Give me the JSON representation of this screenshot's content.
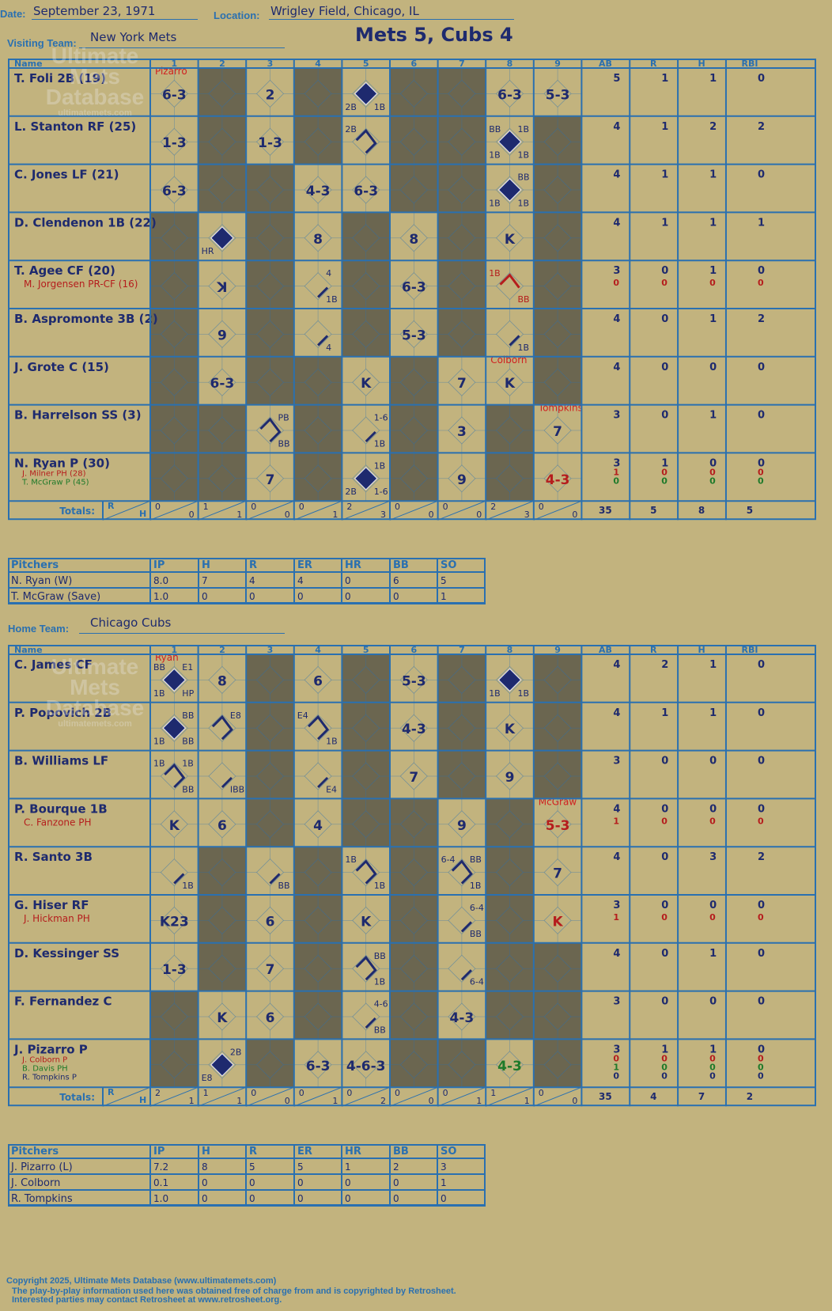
{
  "header": {
    "date_label": "Date:",
    "date": "September 23, 1971",
    "location_label": "Location:",
    "location": "Wrigley Field, Chicago, IL",
    "visiting_label": "Visiting Team:",
    "visiting_team": "New York Mets",
    "home_label": "Home Team:",
    "home_team": "Chicago Cubs",
    "score_title": "Mets 5, Cubs 4"
  },
  "columns": {
    "name": "Name",
    "innings": [
      "1",
      "2",
      "3",
      "4",
      "5",
      "6",
      "7",
      "8",
      "9"
    ],
    "stats": [
      "AB",
      "R",
      "H",
      "RBI"
    ],
    "totals": "Totals:",
    "r": "R",
    "h": "H"
  },
  "watermark": {
    "line1": "Ultimate",
    "line2": "Mets",
    "line3": "Database",
    "line4": "ultimatemets.com"
  },
  "visitor": {
    "batters": [
      {
        "name": "T. Foli 2B (19)",
        "subs": [],
        "stats": [
          [
            "5",
            "1",
            "1",
            "0"
          ]
        ]
      },
      {
        "name": "L. Stanton RF (25)",
        "subs": [],
        "stats": [
          [
            "4",
            "1",
            "2",
            "2"
          ]
        ]
      },
      {
        "name": "C. Jones LF (21)",
        "subs": [],
        "stats": [
          [
            "4",
            "1",
            "1",
            "0"
          ]
        ]
      },
      {
        "name": "D. Clendenon 1B (22)",
        "subs": [],
        "stats": [
          [
            "4",
            "1",
            "1",
            "1"
          ]
        ]
      },
      {
        "name": "T. Agee CF (20)",
        "subs": [
          {
            "name": "M. Jorgensen PR-CF (16)",
            "color": "#b51d1d"
          }
        ],
        "stats": [
          [
            "3",
            "0",
            "1",
            "0"
          ],
          [
            "0",
            "0",
            "0",
            "0"
          ]
        ]
      },
      {
        "name": "B. Aspromonte 3B (2)",
        "subs": [],
        "stats": [
          [
            "4",
            "0",
            "1",
            "2"
          ]
        ]
      },
      {
        "name": "J. Grote C (15)",
        "subs": [],
        "stats": [
          [
            "4",
            "0",
            "0",
            "0"
          ]
        ]
      },
      {
        "name": "B. Harrelson SS (3)",
        "subs": [],
        "stats": [
          [
            "3",
            "0",
            "1",
            "0"
          ]
        ]
      },
      {
        "name": "N. Ryan P (30)",
        "subs": [
          {
            "name": "J. Milner PH (28)",
            "color": "#b51d1d"
          },
          {
            "name": "T. McGraw P (45)",
            "color": "#1f7a2a"
          }
        ],
        "stats": [
          [
            "3",
            "1",
            "0",
            "0"
          ],
          [
            "1",
            "0",
            "0",
            "0"
          ],
          [
            "0",
            "0",
            "0",
            "0"
          ]
        ]
      }
    ],
    "cells": [
      [
        {
          "t": "6-3"
        },
        {
          "shade": true
        },
        {
          "t": "2"
        },
        {
          "shade": true
        },
        {
          "run": true,
          "n": "2B",
          "m": "1B"
        },
        {
          "shade": true
        },
        {
          "shade": true
        },
        {
          "t": "6-3"
        },
        {
          "t": "5-3"
        }
      ],
      [
        {
          "t": "1-3"
        },
        {
          "shade": true
        },
        {
          "t": "1-3"
        },
        {
          "shade": true
        },
        {
          "path": 2,
          "b": "2B"
        },
        {
          "shade": true
        },
        {
          "shade": true
        },
        {
          "run": true,
          "a": "1B",
          "b": "BB",
          "n": "1B",
          "m": "1B"
        },
        {
          "shade": true
        }
      ],
      [
        {
          "t": "6-3"
        },
        {
          "shade": true
        },
        {
          "shade": true
        },
        {
          "t": "4-3"
        },
        {
          "t": "6-3"
        },
        {
          "shade": true
        },
        {
          "shade": true
        },
        {
          "run": true,
          "a": "BB",
          "n": "1B",
          "m": "1B"
        },
        {
          "shade": true
        }
      ],
      [
        {
          "shade": true
        },
        {
          "run": true,
          "n": "HR"
        },
        {
          "shade": true
        },
        {
          "t": "8"
        },
        {
          "shade": true
        },
        {
          "t": "8"
        },
        {
          "shade": true
        },
        {
          "t": "K"
        },
        {
          "shade": true
        }
      ],
      [
        {
          "shade": true
        },
        {
          "t": "K",
          "flip": true
        },
        {
          "shade": true
        },
        {
          "path": 1,
          "m": "1B",
          "a": "4"
        },
        {
          "shade": true
        },
        {
          "t": "6-3"
        },
        {
          "shade": true
        },
        {
          "path": 3,
          "red": true,
          "b": "1B",
          "m": "BB"
        },
        {
          "shade": true
        }
      ],
      [
        {
          "shade": true
        },
        {
          "t": "9"
        },
        {
          "shade": true
        },
        {
          "path": 1,
          "m": "4"
        },
        {
          "shade": true
        },
        {
          "t": "5-3"
        },
        {
          "shade": true
        },
        {
          "path": 1,
          "m": "1B"
        },
        {
          "shade": true
        }
      ],
      [
        {
          "shade": true
        },
        {
          "t": "6-3"
        },
        {
          "shade": true
        },
        {
          "shade": true
        },
        {
          "t": "K"
        },
        {
          "shade": true
        },
        {
          "t": "7"
        },
        {
          "t": "K",
          "note": "Colborn"
        },
        {
          "shade": true
        }
      ],
      [
        {
          "shade": true
        },
        {
          "shade": true
        },
        {
          "path": 2,
          "a": "PB",
          "m": "BB"
        },
        {
          "shade": true
        },
        {
          "path": 1,
          "a": "1-6",
          "m": "1B"
        },
        {
          "shade": true
        },
        {
          "t": "3"
        },
        {
          "shade": true
        },
        {
          "t": "7",
          "note": "Tompkins"
        }
      ],
      [
        {
          "shade": true
        },
        {
          "shade": true
        },
        {
          "t": "7"
        },
        {
          "shade": true
        },
        {
          "run": true,
          "a": "1B",
          "n": "2B",
          "m": "1-6"
        },
        {
          "shade": true
        },
        {
          "t": "9"
        },
        {
          "shade": true
        },
        {
          "t": "4-3",
          "red": true
        }
      ]
    ],
    "first_note": "Pizarro",
    "totals": [
      [
        "0",
        "0"
      ],
      [
        "1",
        "1"
      ],
      [
        "0",
        "0"
      ],
      [
        "0",
        "1"
      ],
      [
        "2",
        "3"
      ],
      [
        "0",
        "0"
      ],
      [
        "0",
        "0"
      ],
      [
        "2",
        "3"
      ],
      [
        "0",
        "0"
      ]
    ],
    "totals_stats": [
      "35",
      "5",
      "8",
      "5"
    ],
    "pitch_headers": [
      "Pitchers",
      "IP",
      "H",
      "R",
      "ER",
      "HR",
      "BB",
      "SO"
    ],
    "pitchers": [
      [
        "N. Ryan (W)",
        "8.0",
        "7",
        "4",
        "4",
        "0",
        "6",
        "5"
      ],
      [
        "T. McGraw (Save)",
        "1.0",
        "0",
        "0",
        "0",
        "0",
        "0",
        "1"
      ]
    ]
  },
  "home": {
    "batters": [
      {
        "name": "C. James CF",
        "subs": [],
        "stats": [
          [
            "4",
            "2",
            "1",
            "0"
          ]
        ]
      },
      {
        "name": "P. Popovich 2B",
        "subs": [],
        "stats": [
          [
            "4",
            "1",
            "1",
            "0"
          ]
        ]
      },
      {
        "name": "B. Williams LF",
        "subs": [],
        "stats": [
          [
            "3",
            "0",
            "0",
            "0"
          ]
        ]
      },
      {
        "name": "P. Bourque 1B",
        "subs": [
          {
            "name": "C. Fanzone PH",
            "color": "#b51d1d"
          }
        ],
        "stats": [
          [
            "4",
            "0",
            "0",
            "0"
          ],
          [
            "1",
            "0",
            "0",
            "0"
          ]
        ]
      },
      {
        "name": "R. Santo 3B",
        "subs": [],
        "stats": [
          [
            "4",
            "0",
            "3",
            "2"
          ]
        ]
      },
      {
        "name": "G. Hiser RF",
        "subs": [
          {
            "name": "J. Hickman PH",
            "color": "#b51d1d"
          }
        ],
        "stats": [
          [
            "3",
            "0",
            "0",
            "0"
          ],
          [
            "1",
            "0",
            "0",
            "0"
          ]
        ]
      },
      {
        "name": "D. Kessinger SS",
        "subs": [],
        "stats": [
          [
            "4",
            "0",
            "1",
            "0"
          ]
        ]
      },
      {
        "name": "F. Fernandez C",
        "subs": [],
        "stats": [
          [
            "3",
            "0",
            "0",
            "0"
          ]
        ]
      },
      {
        "name": "J. Pizarro P",
        "subs": [
          {
            "name": "J. Colborn P",
            "color": "#b51d1d"
          },
          {
            "name": "B. Davis PH",
            "color": "#1f7a2a"
          },
          {
            "name": "R. Tompkins P",
            "color": "#1e2a6e"
          }
        ],
        "stats": [
          [
            "3",
            "1",
            "1",
            "0"
          ],
          [
            "0",
            "0",
            "0",
            "0"
          ],
          [
            "1",
            "0",
            "0",
            "0"
          ],
          [
            "0",
            "0",
            "0",
            "0"
          ]
        ]
      }
    ],
    "cells": [
      [
        {
          "run": true,
          "a": "E1",
          "b": "BB",
          "n": "1B",
          "m": "HP"
        },
        {
          "t": "8"
        },
        {
          "shade": true
        },
        {
          "t": "6"
        },
        {
          "shade": true
        },
        {
          "t": "5-3"
        },
        {
          "shade": true
        },
        {
          "run": true,
          "n": "1B",
          "m": "1B"
        },
        {
          "shade": true
        }
      ],
      [
        {
          "run": true,
          "a": "BB",
          "n": "1B",
          "m": "BB"
        },
        {
          "path": 2,
          "a": "E8"
        },
        {
          "shade": true
        },
        {
          "path": 2,
          "b": "E4",
          "m": "1B"
        },
        {
          "shade": true
        },
        {
          "t": "4-3"
        },
        {
          "shade": true
        },
        {
          "t": "K"
        },
        {
          "shade": true
        }
      ],
      [
        {
          "path": 2,
          "b": "1B",
          "a": "1B",
          "m": "BB"
        },
        {
          "path": 1,
          "m": "IBB"
        },
        {
          "shade": true
        },
        {
          "path": 1,
          "m": "E4"
        },
        {
          "shade": true
        },
        {
          "t": "7"
        },
        {
          "shade": true
        },
        {
          "t": "9"
        },
        {
          "shade": true
        }
      ],
      [
        {
          "t": "K"
        },
        {
          "t": "6"
        },
        {
          "shade": true
        },
        {
          "t": "4"
        },
        {
          "shade": true
        },
        {
          "shade": true
        },
        {
          "t": "9"
        },
        {
          "shade": true
        },
        {
          "t": "5-3",
          "red": true,
          "note": "McGraw"
        }
      ],
      [
        {
          "path": 1,
          "m": "1B"
        },
        {
          "shade": true
        },
        {
          "path": 1,
          "m": "BB"
        },
        {
          "shade": true
        },
        {
          "path": 2,
          "b": "1B",
          "m": "1B"
        },
        {
          "shade": true
        },
        {
          "path": 2,
          "b": "6-4",
          "a": "BB",
          "m": "1B"
        },
        {
          "shade": true
        },
        {
          "t": "7"
        }
      ],
      [
        {
          "t": "K23"
        },
        {
          "shade": true
        },
        {
          "t": "6"
        },
        {
          "shade": true
        },
        {
          "t": "K"
        },
        {
          "shade": true
        },
        {
          "path": 1,
          "a": "6-4",
          "m": "BB"
        },
        {
          "shade": true
        },
        {
          "t": "K",
          "red": true
        }
      ],
      [
        {
          "t": "1-3"
        },
        {
          "shade": true
        },
        {
          "t": "7"
        },
        {
          "shade": true
        },
        {
          "path": 2,
          "a": "BB",
          "m": "1B"
        },
        {
          "shade": true
        },
        {
          "path": 1,
          "m": "6-4"
        },
        {
          "shade": true
        },
        {
          "shade": true
        }
      ],
      [
        {
          "shade": true
        },
        {
          "t": "K"
        },
        {
          "t": "6"
        },
        {
          "shade": true
        },
        {
          "path": 1,
          "a": "4-6",
          "m": "BB"
        },
        {
          "shade": true
        },
        {
          "t": "4-3"
        },
        {
          "shade": true
        },
        {
          "shade": true
        }
      ],
      [
        {
          "shade": true
        },
        {
          "run": true,
          "a": "2B",
          "n": "E8"
        },
        {
          "shade": true
        },
        {
          "t": "6-3"
        },
        {
          "t": "4-6-3"
        },
        {
          "shade": true
        },
        {
          "shade": true
        },
        {
          "t": "4-3",
          "green": true
        },
        {
          "shade": true
        }
      ]
    ],
    "first_note": "Ryan",
    "totals": [
      [
        "2",
        "1"
      ],
      [
        "1",
        "1"
      ],
      [
        "0",
        "0"
      ],
      [
        "0",
        "1"
      ],
      [
        "0",
        "2"
      ],
      [
        "0",
        "0"
      ],
      [
        "0",
        "1"
      ],
      [
        "1",
        "1"
      ],
      [
        "0",
        "0"
      ]
    ],
    "totals_stats": [
      "35",
      "4",
      "7",
      "2"
    ],
    "pitch_headers": [
      "Pitchers",
      "IP",
      "H",
      "R",
      "ER",
      "HR",
      "BB",
      "SO"
    ],
    "pitchers": [
      [
        "J. Pizarro (L)",
        "7.2",
        "8",
        "5",
        "5",
        "1",
        "2",
        "3"
      ],
      [
        "J. Colborn",
        "0.1",
        "0",
        "0",
        "0",
        "0",
        "0",
        "1"
      ],
      [
        "R. Tompkins",
        "1.0",
        "0",
        "0",
        "0",
        "0",
        "0",
        "0"
      ]
    ]
  },
  "footer": {
    "line1": "Copyright 2025, Ultimate Mets Database (www.ultimatemets.com)",
    "line2": "The play-by-play information used here was obtained free of charge from and is copyrighted by Retrosheet.",
    "line3": "Interested parties may contact Retrosheet at www.retrosheet.org."
  },
  "colors": {
    "grid": "#2a70b0",
    "shade": "#6b6650",
    "ink": "#1e2a6e",
    "red": "#b51d1d",
    "green": "#1f7a2a",
    "paper": "#c2b37e"
  }
}
